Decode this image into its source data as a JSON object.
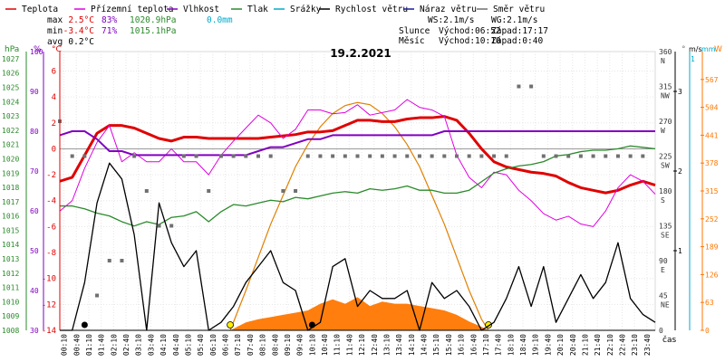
{
  "legend": [
    {
      "label": "Teplota",
      "color": "#e00000"
    },
    {
      "label": "Přízemní teplota",
      "color": "#e000e0"
    },
    {
      "label": "Vlhkost",
      "color": "#8000c0"
    },
    {
      "label": "Tlak",
      "color": "#2a8a2a"
    },
    {
      "label": "Srážky",
      "color": "#00aacc"
    },
    {
      "label": "Rychlost větru",
      "color": "#000000"
    },
    {
      "label": "Náraz větru",
      "color": "#1a1a9a"
    },
    {
      "label": "Směr větru",
      "color": "#707070"
    }
  ],
  "stats": {
    "max_label": "max",
    "max_temp": "2.5°C",
    "max_hum": "83%",
    "max_press": "1020.9hPa",
    "max_precip": "0.0mm",
    "min_label": "min",
    "min_temp": "-3.4°C",
    "min_hum": "71%",
    "min_press": "1015.1hPa",
    "avg_label": "avg",
    "avg_temp": "0.2°C"
  },
  "wind_info": {
    "ws": "WS:2.1m/s",
    "wg": "WG:2.1m/s"
  },
  "astro": {
    "sun_label": "Slunce",
    "sun_rise": "Východ:06:52",
    "sun_set": "Západ:17:17",
    "moon_label": "Měsíc",
    "moon_rise": "Východ:10:10",
    "moon_set": "Západ:0:40"
  },
  "date": "19.2.2021",
  "axis_units": {
    "hpa": "hPa",
    "pct": "%",
    "degc": "°C",
    "deg": "°",
    "ms": "m/s",
    "mm": "mm",
    "w": "W",
    "cas": "čas"
  },
  "colors": {
    "temp": "#e00000",
    "ground": "#e000e0",
    "hum": "#8000c0",
    "press": "#2a8a2a",
    "precip": "#00aacc",
    "wind": "#000000",
    "gust": "#1a1a9a",
    "dir": "#707070",
    "solar_area": "#ff7700",
    "solar_line": "#e08000",
    "zero_line": "#9a9a9a"
  },
  "chart_data": {
    "type": "line",
    "title": "19.2.2021",
    "x_ticks": [
      "00:10",
      "00:40",
      "01:10",
      "01:40",
      "02:10",
      "02:40",
      "03:10",
      "03:40",
      "04:10",
      "04:40",
      "05:10",
      "05:40",
      "06:10",
      "06:40",
      "07:10",
      "07:40",
      "08:10",
      "08:40",
      "09:10",
      "09:40",
      "10:10",
      "10:40",
      "11:10",
      "11:40",
      "12:10",
      "12:40",
      "13:10",
      "13:40",
      "14:10",
      "14:40",
      "15:10",
      "15:40",
      "16:10",
      "16:40",
      "17:10",
      "17:40",
      "18:10",
      "18:40",
      "19:10",
      "19:40",
      "20:10",
      "20:40",
      "21:10",
      "21:40",
      "22:10",
      "22:40",
      "23:10",
      "23:40"
    ],
    "axes": {
      "pressure_hpa": {
        "ticks": [
          1027,
          1026,
          1025,
          1024,
          1023,
          1022,
          1021,
          1020,
          1019,
          1018,
          1017,
          1016,
          1015,
          1014,
          1013,
          1012,
          1011,
          1010,
          1009,
          1008
        ],
        "range": [
          1008,
          1027.5
        ]
      },
      "humidity_pct": {
        "ticks": [
          100,
          90,
          80,
          70,
          60,
          50,
          40,
          30
        ],
        "range": [
          30,
          100
        ]
      },
      "temperature_c": {
        "ticks": [
          6,
          4,
          2,
          0,
          -2,
          -4,
          -6,
          -8,
          -10,
          -12,
          -14
        ],
        "range": [
          -14,
          7.5
        ]
      },
      "direction_deg": {
        "ticks": [
          "360",
          "315",
          "270",
          "225",
          "180",
          "135",
          "90",
          "45",
          "0"
        ],
        "compass": [
          "N",
          "NW",
          "W",
          "SW",
          "S",
          "SE",
          "E",
          "NE",
          ""
        ]
      },
      "wind_ms": {
        "ticks": [
          3,
          2,
          1
        ],
        "range": [
          0,
          3.5
        ]
      },
      "precip_mm": {
        "ticks": [
          1
        ],
        "range": [
          0,
          1
        ]
      },
      "solar_w": {
        "ticks": [
          567,
          504,
          441,
          378,
          315,
          252,
          189,
          126,
          63,
          0
        ],
        "range": [
          0,
          567
        ]
      }
    },
    "series": [
      {
        "name": "Teplota",
        "axis": "temperature_c",
        "x": [
          0,
          0.5,
          1,
          1.5,
          2,
          2.5,
          3,
          3.5,
          4,
          4.5,
          5,
          5.5,
          6,
          6.5,
          7,
          7.5,
          8,
          8.5,
          9,
          9.5,
          10,
          10.5,
          11,
          11.5,
          12,
          12.5,
          13,
          13.5,
          14,
          14.5,
          15,
          15.5,
          16,
          16.5,
          17,
          17.5,
          18,
          18.5,
          19,
          19.5,
          20,
          20.5,
          21,
          21.5,
          22,
          22.5,
          23,
          23.5,
          24
        ],
        "y": [
          -2.5,
          -2.2,
          -0.5,
          1.2,
          1.8,
          1.8,
          1.6,
          1.2,
          0.8,
          0.6,
          0.9,
          0.9,
          0.8,
          0.8,
          0.8,
          0.8,
          0.8,
          0.9,
          1.0,
          1.1,
          1.3,
          1.3,
          1.4,
          1.8,
          2.2,
          2.2,
          2.1,
          2.1,
          2.3,
          2.4,
          2.4,
          2.5,
          2.2,
          1.2,
          0.0,
          -1.0,
          -1.4,
          -1.6,
          -1.8,
          -1.9,
          -2.1,
          -2.6,
          -3.0,
          -3.2,
          -3.4,
          -3.2,
          -2.8,
          -2.5,
          -2.8
        ]
      },
      {
        "name": "Přízemní teplota",
        "axis": "temperature_c",
        "x": [
          0,
          0.5,
          1,
          1.5,
          2,
          2.5,
          3,
          3.5,
          4,
          4.5,
          5,
          5.5,
          6,
          6.5,
          7,
          7.5,
          8,
          8.5,
          9,
          9.5,
          10,
          10.5,
          11,
          11.5,
          12,
          12.5,
          13,
          13.5,
          14,
          14.5,
          15,
          15.5,
          16,
          16.5,
          17,
          17.5,
          18,
          18.5,
          19,
          19.5,
          20,
          20.5,
          21,
          21.5,
          22,
          22.5,
          23,
          23.5,
          24
        ],
        "y": [
          -4.8,
          -4.0,
          -1.5,
          0.5,
          1.8,
          -1.0,
          -0.3,
          -1.0,
          -1.0,
          0.0,
          -1.0,
          -1.0,
          -2.0,
          -0.5,
          0.6,
          1.6,
          2.6,
          2.0,
          0.8,
          1.5,
          3.0,
          3.0,
          2.7,
          2.8,
          3.4,
          2.6,
          2.8,
          3.0,
          3.8,
          3.2,
          3.0,
          2.5,
          -0.5,
          -2.2,
          -3.0,
          -1.8,
          -2.0,
          -3.2,
          -4.0,
          -5.0,
          -5.5,
          -5.2,
          -5.8,
          -6.0,
          -4.8,
          -3.0,
          -2.0,
          -2.5,
          -3.5
        ]
      },
      {
        "name": "Vlhkost",
        "axis": "humidity_pct",
        "x": [
          0,
          0.5,
          1,
          1.5,
          2,
          2.5,
          3,
          3.5,
          4,
          4.5,
          5,
          5.5,
          6,
          6.5,
          7,
          7.5,
          8,
          8.5,
          9,
          9.5,
          10,
          10.5,
          11,
          11.5,
          12,
          12.5,
          13,
          13.5,
          14,
          14.5,
          15,
          15.5,
          16,
          16.5,
          17,
          17.5,
          18,
          18.5,
          19,
          19.5,
          20,
          20.5,
          21,
          21.5,
          22,
          22.5,
          23,
          23.5,
          24
        ],
        "y": [
          79,
          80,
          80,
          78,
          75,
          75,
          74,
          74,
          74,
          74,
          74,
          74,
          74,
          74,
          74,
          74,
          75,
          76,
          76,
          77,
          78,
          78,
          79,
          79,
          79,
          79,
          79,
          79,
          79,
          79,
          79,
          80,
          80,
          80,
          80,
          80,
          80,
          80,
          80,
          80,
          80,
          80,
          80,
          80,
          80,
          80,
          80,
          80,
          80
        ]
      },
      {
        "name": "Tlak",
        "axis": "pressure_hpa",
        "x": [
          0,
          0.5,
          1,
          1.5,
          2,
          2.5,
          3,
          3.5,
          4,
          4.5,
          5,
          5.5,
          6,
          6.5,
          7,
          7.5,
          8,
          8.5,
          9,
          9.5,
          10,
          10.5,
          11,
          11.5,
          12,
          12.5,
          13,
          13.5,
          14,
          14.5,
          15,
          15.5,
          16,
          16.5,
          17,
          17.5,
          18,
          18.5,
          19,
          19.5,
          20,
          20.5,
          21,
          21.5,
          22,
          22.5,
          23,
          23.5,
          24
        ],
        "y": [
          1016.7,
          1016.7,
          1016.5,
          1016.2,
          1016.0,
          1015.6,
          1015.3,
          1015.6,
          1015.4,
          1015.9,
          1016.0,
          1016.3,
          1015.6,
          1016.3,
          1016.8,
          1016.7,
          1016.9,
          1017.1,
          1017.0,
          1017.3,
          1017.2,
          1017.4,
          1017.6,
          1017.7,
          1017.6,
          1017.9,
          1017.8,
          1017.9,
          1018.1,
          1017.8,
          1017.8,
          1017.6,
          1017.6,
          1017.8,
          1018.4,
          1019.0,
          1019.3,
          1019.5,
          1019.6,
          1019.8,
          1020.2,
          1020.3,
          1020.5,
          1020.6,
          1020.6,
          1020.7,
          1020.9,
          1020.8,
          1020.7
        ]
      },
      {
        "name": "Rychlost větru",
        "axis": "wind_ms",
        "x": [
          0,
          0.5,
          1,
          1.5,
          2,
          2.5,
          3,
          3.5,
          4,
          4.5,
          5,
          5.5,
          6,
          6.5,
          7,
          7.5,
          8,
          8.5,
          9,
          9.5,
          10,
          10.5,
          11,
          11.5,
          12,
          12.5,
          13,
          13.5,
          14,
          14.5,
          15,
          15.5,
          16,
          16.5,
          17,
          17.5,
          18,
          18.5,
          19,
          19.5,
          20,
          20.5,
          21,
          21.5,
          22,
          22.5,
          23,
          23.5,
          24
        ],
        "y": [
          0.0,
          0.0,
          0.6,
          1.6,
          2.1,
          1.9,
          1.2,
          0.0,
          1.6,
          1.1,
          0.8,
          1.0,
          0.0,
          0.1,
          0.3,
          0.6,
          0.8,
          1.0,
          0.6,
          0.5,
          0.0,
          0.1,
          0.8,
          0.9,
          0.3,
          0.5,
          0.4,
          0.4,
          0.5,
          0.0,
          0.6,
          0.4,
          0.5,
          0.3,
          0.0,
          0.1,
          0.4,
          0.8,
          0.3,
          0.8,
          0.1,
          0.4,
          0.7,
          0.4,
          0.6,
          1.1,
          0.4,
          0.2,
          0.1
        ]
      },
      {
        "name": "Směr větru",
        "axis": "direction_deg",
        "x": [
          0,
          0.5,
          1,
          1.5,
          2,
          2.5,
          3,
          3.5,
          4,
          4.5,
          5,
          5.5,
          6,
          6.5,
          7,
          7.5,
          8,
          8.5,
          9,
          9.5,
          10,
          10.5,
          11,
          11.5,
          12,
          12.5,
          13,
          13.5,
          14,
          14.5,
          15,
          15.5,
          16,
          16.5,
          17,
          17.5,
          18,
          18.5,
          19,
          19.5,
          20,
          20.5,
          21,
          21.5,
          22,
          22.5,
          23,
          23.5
        ],
        "y": [
          270,
          225,
          225,
          45,
          90,
          90,
          225,
          180,
          135,
          135,
          225,
          225,
          180,
          225,
          225,
          225,
          225,
          225,
          180,
          180,
          225,
          225,
          225,
          225,
          225,
          225,
          225,
          225,
          225,
          225,
          225,
          225,
          225,
          225,
          225,
          225,
          225,
          315,
          315,
          225,
          225,
          225,
          225,
          225,
          225,
          225,
          225,
          225
        ]
      },
      {
        "name": "Sluneční záření",
        "axis": "solar_w",
        "x": [
          6.87,
          7.5,
          8,
          8.5,
          9,
          9.5,
          10,
          10.5,
          11,
          11.5,
          12,
          12.5,
          13,
          13.5,
          14,
          14.5,
          15,
          15.5,
          16,
          16.5,
          17,
          17.28
        ],
        "y": [
          0,
          18,
          25,
          30,
          35,
          40,
          45,
          60,
          70,
          60,
          75,
          55,
          65,
          60,
          60,
          55,
          50,
          45,
          35,
          20,
          8,
          0
        ]
      },
      {
        "name": "Výška slunce",
        "axis": "solar_w",
        "x": [
          6.87,
          7.5,
          8,
          8.5,
          9,
          9.5,
          10,
          10.5,
          11,
          11.5,
          12,
          12.5,
          13,
          13.5,
          14,
          14.5,
          15,
          15.5,
          16,
          16.5,
          17,
          17.28
        ],
        "y": [
          0,
          90,
          165,
          240,
          305,
          370,
          420,
          460,
          490,
          508,
          515,
          510,
          490,
          460,
          420,
          370,
          305,
          240,
          165,
          90,
          25,
          0
        ]
      }
    ]
  }
}
